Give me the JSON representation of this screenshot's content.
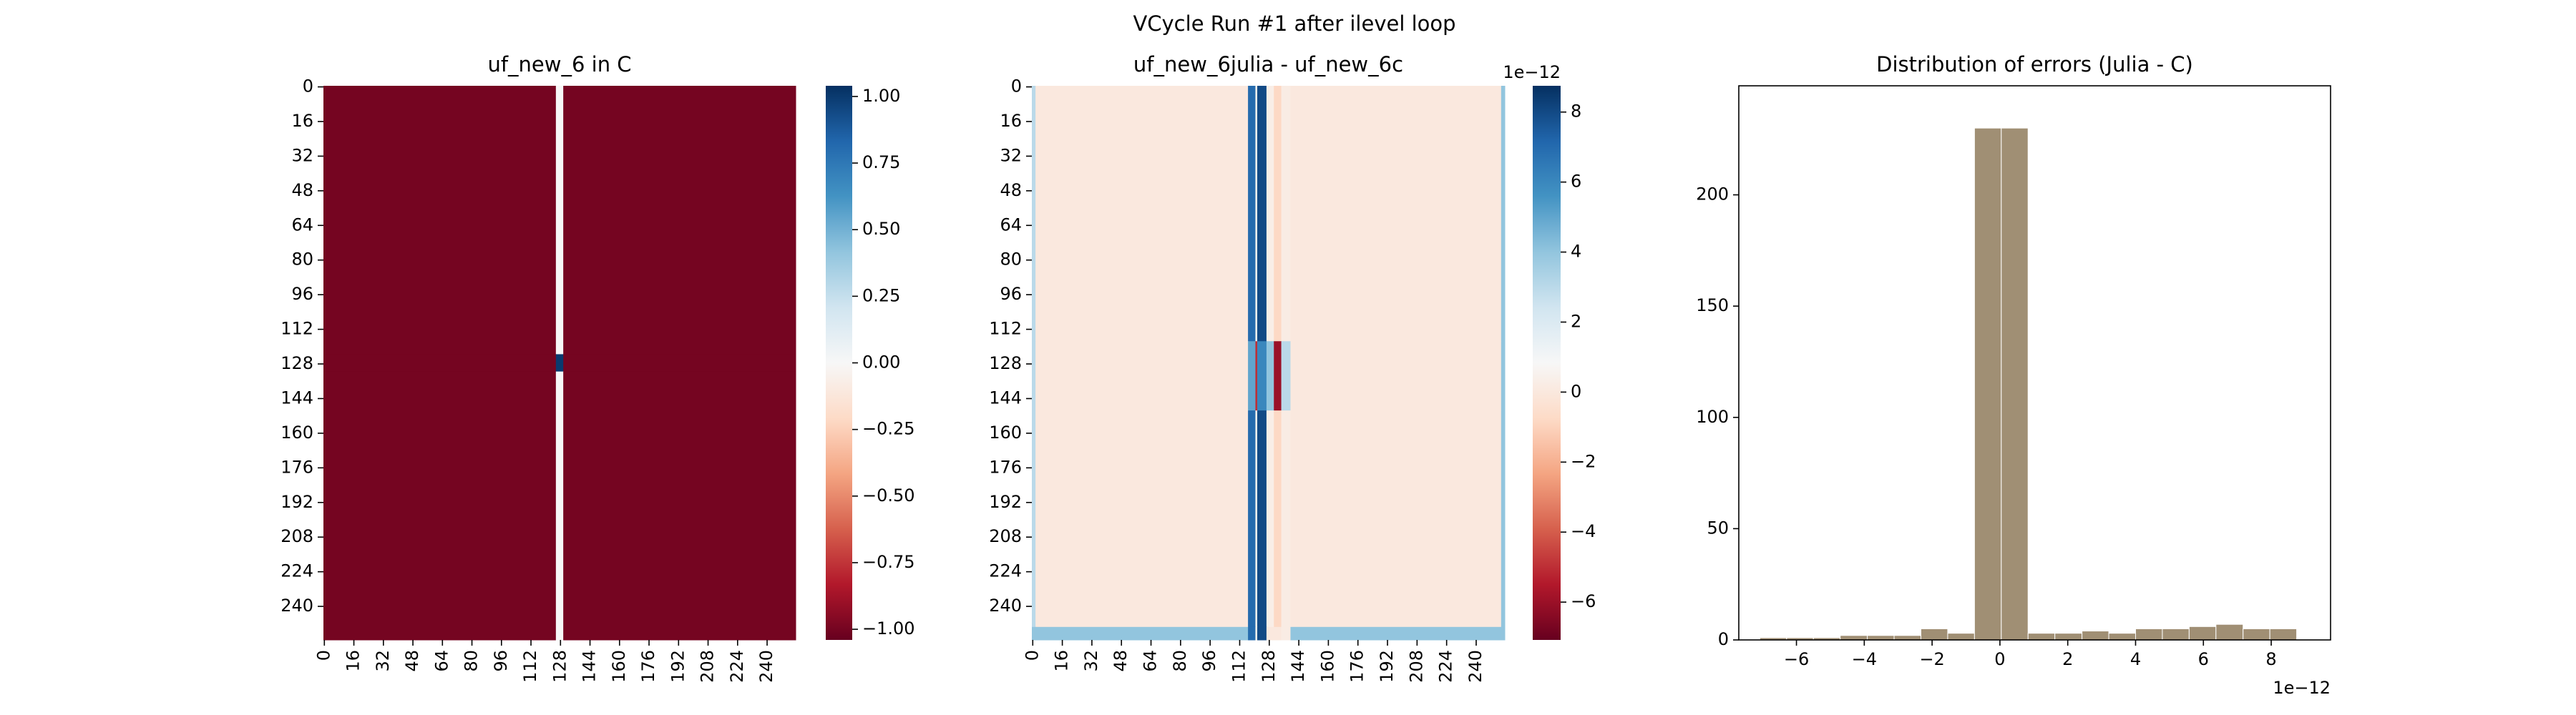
{
  "title": "VCycle Run #1 after ilevel loop",
  "chart_data": [
    {
      "type": "heatmap",
      "title": "uf_new_6 in C",
      "cmap": "RdBu",
      "x_edges": [
        0,
        126,
        130,
        256
      ],
      "y_edges": [
        0,
        124,
        132,
        256
      ],
      "z": [
        [
          -1,
          0,
          -1
        ],
        [
          -1,
          1,
          -1
        ],
        [
          -1,
          0,
          -1
        ]
      ],
      "xlim": [
        0,
        256
      ],
      "ylim": [
        0,
        256
      ],
      "xticks": [
        0,
        16,
        32,
        48,
        64,
        80,
        96,
        112,
        128,
        144,
        160,
        176,
        192,
        208,
        224,
        240
      ],
      "yticks": [
        0,
        16,
        32,
        48,
        64,
        80,
        96,
        112,
        128,
        144,
        160,
        176,
        192,
        208,
        224,
        240
      ],
      "clim": [
        -1.04,
        1.04
      ],
      "cticks": [
        {
          "value": 1,
          "label": "1.00"
        },
        {
          "value": 0.75,
          "label": "0.75"
        },
        {
          "value": 0.5,
          "label": "0.50"
        },
        {
          "value": 0.25,
          "label": "0.25"
        },
        {
          "value": 0,
          "label": "0.00"
        },
        {
          "value": -0.25,
          "label": "−0.25"
        },
        {
          "value": -0.5,
          "label": "−0.50"
        },
        {
          "value": -0.75,
          "label": "−0.75"
        },
        {
          "value": -1,
          "label": "−1.00"
        }
      ]
    },
    {
      "type": "heatmap",
      "title": "uf_new_6julia - uf_new_6c",
      "cmap": "RdBu",
      "x_edges": [
        0,
        2,
        117,
        121,
        122,
        127,
        131,
        135,
        140,
        254,
        256
      ],
      "y_edges": [
        0,
        118,
        150,
        250,
        256
      ],
      "z": [
        [
          3,
          0,
          7,
          0.5,
          8,
          0.3,
          -0.8,
          0.2,
          0,
          4
        ],
        [
          3,
          0,
          5,
          -5,
          6,
          4,
          -6,
          3,
          0,
          4
        ],
        [
          3,
          0,
          7,
          0.5,
          8,
          0.3,
          -0.8,
          0.2,
          0,
          4
        ],
        [
          4,
          4,
          7,
          0.5,
          8,
          0,
          0,
          0.2,
          4,
          4
        ]
      ],
      "xlim": [
        0,
        256
      ],
      "ylim": [
        0,
        256
      ],
      "xticks": [
        0,
        16,
        32,
        48,
        64,
        80,
        96,
        112,
        128,
        144,
        160,
        176,
        192,
        208,
        224,
        240
      ],
      "yticks": [
        0,
        16,
        32,
        48,
        64,
        80,
        96,
        112,
        128,
        144,
        160,
        176,
        192,
        208,
        224,
        240
      ],
      "clim": [
        -7.08,
        8.75
      ],
      "cticks": [
        8,
        6,
        4,
        2,
        0,
        {
          "value": -2,
          "label": "−2"
        },
        {
          "value": -4,
          "label": "−4"
        },
        {
          "value": -6,
          "label": "−6"
        }
      ],
      "colorbar_offset": "1e−12"
    },
    {
      "type": "histogram",
      "title": "Distribution of errors (Julia - C)",
      "color": "#8f7b5c",
      "bins": [
        -7.08,
        -6.29,
        -5.5,
        -4.71,
        -3.91,
        -3.12,
        -2.33,
        -1.54,
        -0.75,
        0.04,
        0.83,
        1.62,
        2.42,
        3.21,
        4.0,
        4.79,
        5.58,
        6.37,
        7.17,
        7.96,
        8.75
      ],
      "values": [
        1,
        1,
        1,
        2,
        2,
        2,
        5,
        3,
        230,
        230,
        3,
        3,
        4,
        3,
        5,
        5,
        6,
        7,
        5,
        5
      ],
      "xlim": [
        -7.7,
        9.75
      ],
      "ylim": [
        0,
        249
      ],
      "xticks": [
        {
          "value": -6,
          "label": "−6"
        },
        {
          "value": -4,
          "label": "−4"
        },
        {
          "value": -2,
          "label": "−2"
        },
        0,
        2,
        4,
        6,
        8
      ],
      "yticks": [
        0,
        50,
        100,
        150,
        200
      ],
      "x_offset": "1e−12"
    }
  ]
}
